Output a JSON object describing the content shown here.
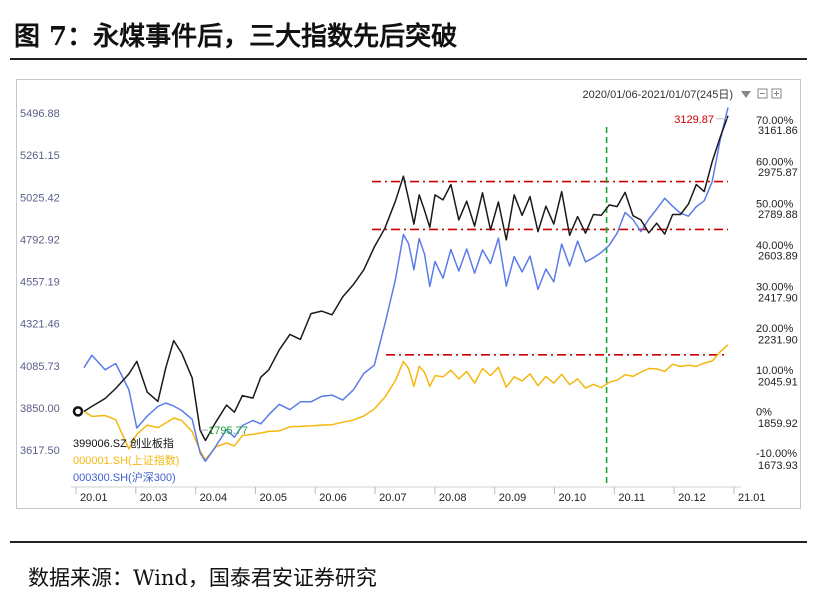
{
  "figure_title": "图 7：永煤事件后，三大指数先后突破",
  "source_note": "数据来源：Wind，国泰君安证券研究",
  "date_range_label": "2020/01/06-2021/01/07(245日)",
  "colors": {
    "gem": "#1a1a1a",
    "sse": "#f5b70f",
    "hs300": "#5b7ce8",
    "resistance": "#cc0000",
    "breakout": "#19a33a",
    "axis_text": "#5a5f8a"
  },
  "chart_data": {
    "type": "line",
    "title": "",
    "x_ticks": [
      "20.01",
      "20.03",
      "20.04",
      "20.05",
      "20.06",
      "20.07",
      "20.08",
      "20.09",
      "20.10",
      "20.11",
      "20.12",
      "21.01"
    ],
    "left_axis": {
      "ticks": [
        "5496.88",
        "5261.15",
        "5025.42",
        "4792.92",
        "4557.19",
        "4321.46",
        "4085.73",
        "3850.00",
        "3617.50"
      ],
      "ylim": [
        3617.5,
        5496.88
      ]
    },
    "right_axis_pct": {
      "ticks": [
        "70.00%",
        "60.00%",
        "50.00%",
        "40.00%",
        "30.00%",
        "20.00%",
        "10.00%",
        "0%",
        "-10.00%"
      ],
      "ylim": [
        -10,
        70
      ]
    },
    "right_axis_gem": {
      "ticks": [
        "3161.86",
        "2975.87",
        "2789.88",
        "2603.89",
        "2417.90",
        "2231.90",
        "2045.91",
        "1859.92",
        "1673.93"
      ],
      "ylim": [
        1673.93,
        3161.86
      ]
    },
    "series": [
      {
        "name": "399006.SZ 创业板指",
        "color_key": "gem",
        "x": [
          0,
          3,
          8,
          12,
          17,
          20,
          24,
          28,
          31,
          34,
          37,
          41,
          44,
          46,
          50,
          54,
          57,
          60,
          64,
          67,
          70,
          74,
          78,
          82,
          86,
          90,
          94,
          98,
          102,
          106,
          110,
          114,
          118,
          121,
          123,
          125,
          127,
          129,
          131,
          133,
          136,
          139,
          142,
          145,
          148,
          151,
          154,
          157,
          160,
          163,
          166,
          169,
          172,
          175,
          178,
          181,
          184,
          187,
          190,
          193,
          196,
          199,
          202,
          205,
          208,
          211,
          214,
          217,
          220,
          223,
          226,
          229,
          232,
          235,
          238,
          241,
          244
        ],
        "values": [
          0,
          1.2,
          3.1,
          5.5,
          9,
          12,
          4.6,
          2.4,
          10.5,
          17,
          14,
          8,
          -4.5,
          -7,
          -2.5,
          1.5,
          -0.2,
          3.8,
          3.2,
          8.2,
          10,
          14.8,
          18.5,
          17.3,
          23.5,
          24.1,
          23.2,
          27.5,
          30.4,
          34,
          39.5,
          44,
          50.5,
          56.5,
          51,
          45,
          52,
          48.3,
          44.2,
          52,
          50.8,
          54.5,
          46,
          50.5,
          44.5,
          52.5,
          43.6,
          50.3,
          41.2,
          52,
          47.1,
          51.6,
          43.2,
          49.3,
          45,
          52.8,
          42.3,
          46.8,
          42.8,
          47.3,
          47.1,
          49.6,
          49.2,
          52.6,
          47,
          46,
          42.9,
          45.2,
          42.6,
          47.3,
          47.3,
          49.8,
          54.5,
          52.8,
          60,
          65.8,
          71
        ]
      },
      {
        "name": "000001.SH(上证指数)",
        "color_key": "sse",
        "x": [
          0,
          3,
          8,
          12,
          17,
          20,
          24,
          28,
          31,
          34,
          37,
          41,
          44,
          46,
          50,
          54,
          57,
          60,
          64,
          67,
          70,
          74,
          78,
          82,
          86,
          90,
          94,
          98,
          102,
          106,
          110,
          114,
          118,
          121,
          123,
          125,
          127,
          129,
          131,
          133,
          136,
          139,
          142,
          145,
          148,
          151,
          154,
          157,
          160,
          163,
          166,
          169,
          172,
          175,
          178,
          181,
          184,
          187,
          190,
          193,
          196,
          199,
          202,
          205,
          208,
          211,
          214,
          217,
          220,
          223,
          226,
          229,
          232,
          235,
          238,
          241,
          244
        ],
        "values": [
          0,
          -1.2,
          -1,
          -2,
          -9,
          -5.5,
          -3.3,
          -3.9,
          -2.8,
          -1.6,
          -2.2,
          -4.9,
          -9.5,
          -11.6,
          -8.5,
          -7.6,
          -8.3,
          -5.8,
          -5.5,
          -5.2,
          -4.8,
          -4.7,
          -3.7,
          -3.6,
          -3.5,
          -3.3,
          -3.2,
          -2.6,
          -2.1,
          -1.1,
          0.6,
          3.4,
          7.4,
          12,
          10.3,
          6,
          10.8,
          9.4,
          6,
          8.6,
          8.3,
          9.9,
          7.8,
          9.6,
          6.8,
          10.3,
          8.6,
          10.6,
          5.8,
          8.3,
          7.3,
          9,
          6.2,
          8.4,
          6.8,
          8.9,
          6.4,
          7.8,
          5.6,
          6.5,
          5.7,
          7,
          7.5,
          8.8,
          8.4,
          9.4,
          10.3,
          10.2,
          9.6,
          11.3,
          10.8,
          11.1,
          10.8,
          11.6,
          12.1,
          14.3,
          16
        ]
      },
      {
        "name": "000300.SH(沪深300)",
        "color_key": "hs300",
        "x": [
          0,
          3,
          8,
          12,
          17,
          20,
          24,
          28,
          31,
          34,
          37,
          41,
          44,
          46,
          50,
          54,
          57,
          60,
          64,
          67,
          70,
          74,
          78,
          82,
          86,
          90,
          94,
          98,
          102,
          106,
          110,
          114,
          118,
          121,
          123,
          125,
          127,
          129,
          131,
          133,
          136,
          139,
          142,
          145,
          148,
          151,
          154,
          157,
          160,
          163,
          166,
          169,
          172,
          175,
          178,
          181,
          184,
          187,
          190,
          193,
          196,
          199,
          202,
          205,
          208,
          211,
          214,
          217,
          220,
          223,
          226,
          229,
          232,
          235,
          238,
          241,
          244
        ],
        "values": [
          10.5,
          13.5,
          10,
          11.5,
          5.2,
          -4,
          -1.1,
          1.2,
          2,
          1.3,
          0.2,
          -1.9,
          -10,
          -12,
          -8.3,
          -4.4,
          -6.2,
          -3.4,
          -2.2,
          -3,
          -0.8,
          1.7,
          0.4,
          2.3,
          2.3,
          3.6,
          3.9,
          2.7,
          5.1,
          9.1,
          11.1,
          21,
          31.6,
          42.5,
          40.3,
          34,
          41.5,
          37.8,
          30,
          36,
          32,
          38.9,
          33.7,
          39,
          33.2,
          38.8,
          35.5,
          41.6,
          30.1,
          37.2,
          33.5,
          37.3,
          29.3,
          34.2,
          31.1,
          40.2,
          34.9,
          40.9,
          35.9,
          36.9,
          38.2,
          39.9,
          42.8,
          47.8,
          46.1,
          43.2,
          46.2,
          48.6,
          51.2,
          49.3,
          47.6,
          46.9,
          49.2,
          50.6,
          55.2,
          65.1,
          73
        ]
      }
    ],
    "annotations": {
      "gem_low_label": "1795.77",
      "gem_high_label": "3129.87",
      "resistance_levels_pct": [
        55.2,
        43.7,
        13.6
      ],
      "breakout_line_x": 198
    },
    "legend_position": "bottom-left",
    "grid": false
  }
}
